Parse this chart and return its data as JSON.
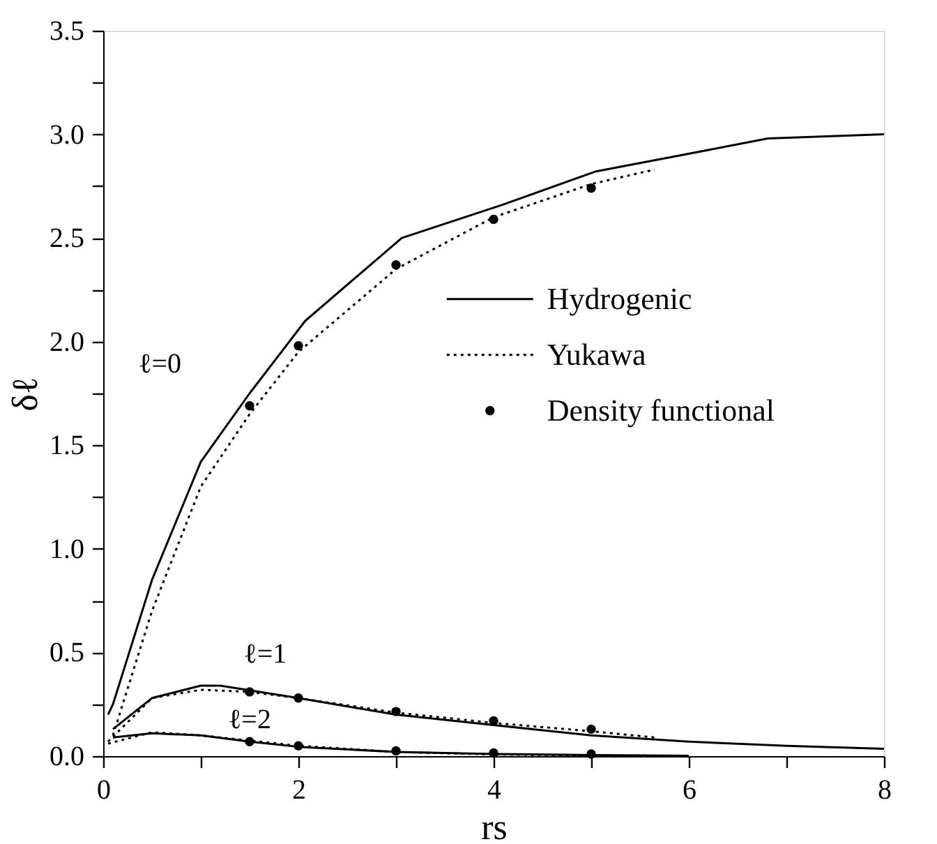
{
  "chart_data": {
    "type": "line",
    "xlabel": "rs",
    "ylabel": "δℓ",
    "xlim": [
      0,
      8
    ],
    "ylim": [
      0,
      3.5
    ],
    "xticks": [
      0,
      {
        "value": 1,
        "label": null
      },
      2,
      {
        "value": 3,
        "label": null
      },
      4,
      {
        "value": 5,
        "label": null
      },
      6,
      {
        "value": 7,
        "label": null
      },
      8
    ],
    "yticks": [
      {
        "value": 0,
        "label": "0.0"
      },
      {
        "value": 0.25,
        "label": null
      },
      {
        "value": 0.5,
        "label": "0.5"
      },
      {
        "value": 0.75,
        "label": null
      },
      {
        "value": 1,
        "label": "1.0"
      },
      {
        "value": 1.25,
        "label": null
      },
      {
        "value": 1.5,
        "label": "1.5"
      },
      {
        "value": 1.75,
        "label": null
      },
      {
        "value": 2,
        "label": "2.0"
      },
      {
        "value": 2.25,
        "label": null
      },
      {
        "value": 2.5,
        "label": "2.5"
      },
      {
        "value": 2.75,
        "label": null
      },
      {
        "value": 3,
        "label": "3.0"
      },
      {
        "value": 3.25,
        "label": null
      },
      {
        "value": 3.5,
        "label": "3.5"
      }
    ],
    "grid": false,
    "legend": "right",
    "series": [
      {
        "name": "Hydrogenic",
        "line_style": "solid",
        "color": "#000000",
        "x": [
          0.05,
          0.1,
          0.5,
          1,
          1.5,
          2.07,
          3.06,
          4.09,
          5.04,
          5.93,
          6.81,
          8
        ],
        "values": [
          0.2,
          0.25,
          0.85,
          1.42,
          1.75,
          2.1,
          2.5,
          2.66,
          2.82,
          2.9,
          2.98,
          3.0
        ]
      },
      {
        "line_style": "solid",
        "color": "#000000",
        "x": [
          0.1,
          0.5,
          1,
          1.2,
          2,
          3,
          4,
          5,
          6,
          7,
          8
        ],
        "values": [
          0.13,
          0.28,
          0.34,
          0.34,
          0.28,
          0.2,
          0.15,
          0.1,
          0.07,
          0.05,
          0.035
        ]
      },
      {
        "line_style": "solid",
        "color": "#000000",
        "x": [
          0.1,
          0.5,
          1,
          1.5,
          2,
          3,
          4,
          5,
          6
        ],
        "values": [
          0.09,
          0.11,
          0.1,
          0.07,
          0.045,
          0.02,
          0.01,
          0.005,
          0.002
        ]
      },
      {
        "name": "Yukawa",
        "line_style": "dotted",
        "color": "#000000",
        "x": [
          0.1,
          0.5,
          1,
          1.5,
          2,
          3,
          4,
          5,
          5.65
        ],
        "values": [
          0.1,
          0.7,
          1.3,
          1.65,
          1.95,
          2.35,
          2.6,
          2.76,
          2.83
        ]
      },
      {
        "line_style": "dotted",
        "color": "#000000",
        "x": [
          0.05,
          0.5,
          1,
          1.5,
          2,
          3,
          4,
          5,
          5.65
        ],
        "values": [
          0.07,
          0.28,
          0.32,
          0.31,
          0.28,
          0.21,
          0.16,
          0.12,
          0.09
        ]
      },
      {
        "line_style": "dotted",
        "color": "#000000",
        "x": [
          0.05,
          0.5,
          1,
          1.5,
          2,
          3,
          4,
          5,
          5.65
        ],
        "values": [
          0.06,
          0.115,
          0.1,
          0.075,
          0.05,
          0.02,
          0.008,
          0.003,
          0.002
        ]
      },
      {
        "name": "Density functional",
        "type": "scatter",
        "marker": "circle",
        "color": "#000000",
        "x": [
          1.5,
          2,
          3,
          4,
          5
        ],
        "values": [
          1.69,
          1.98,
          2.37,
          2.59,
          2.74
        ]
      },
      {
        "type": "scatter",
        "marker": "circle",
        "color": "#000000",
        "x": [
          1.5,
          2,
          3,
          4,
          5
        ],
        "values": [
          0.31,
          0.28,
          0.215,
          0.17,
          0.13
        ]
      },
      {
        "type": "scatter",
        "marker": "circle",
        "color": "#000000",
        "x": [
          1.5,
          2,
          3,
          4,
          5
        ],
        "values": [
          0.07,
          0.05,
          0.025,
          0.015,
          0.01
        ]
      }
    ],
    "annotations": [
      "ℓ=0",
      "ℓ=1",
      "ℓ=2"
    ]
  }
}
